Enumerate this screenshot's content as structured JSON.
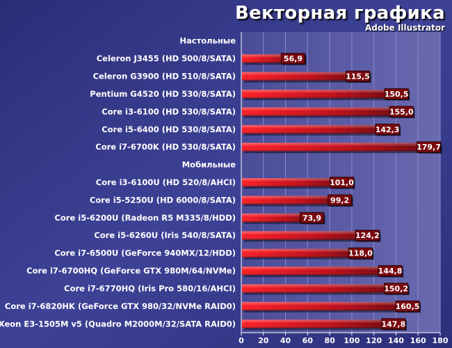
{
  "title": "Векторная графика",
  "subtitle": "Adobe Illustrator",
  "colors": {
    "background": "#3a3e8c",
    "plot_background": "#5a5aa0",
    "bar_main": "#e8101a",
    "bar_dark": "#7a0008",
    "label_box": "#8a0a10",
    "axis_text": "#ffffff"
  },
  "chart_data": {
    "type": "bar",
    "orientation": "horizontal",
    "xlim": [
      0,
      180
    ],
    "xticks": [
      0,
      20,
      40,
      60,
      80,
      100,
      120,
      140,
      160,
      180
    ],
    "grid": true,
    "rows": [
      {
        "label": "Настольные",
        "kind": "group"
      },
      {
        "label": "Celeron J3455 (HD 500/8/SATA)",
        "value": 56.9,
        "display": "56,9"
      },
      {
        "label": "Celeron G3900 (HD 510/8/SATA)",
        "value": 115.5,
        "display": "115,5"
      },
      {
        "label": "Pentium G4520 (HD 530/8/SATA)",
        "value": 150.5,
        "display": "150,5"
      },
      {
        "label": "Core i3-6100 (HD 530/8/SATA)",
        "value": 155.0,
        "display": "155,0"
      },
      {
        "label": "Core i5-6400 (HD 530/8/SATA)",
        "value": 142.3,
        "display": "142,3"
      },
      {
        "label": "Core i7-6700K (HD 530/8/SATA)",
        "value": 179.7,
        "display": "179,7"
      },
      {
        "label": "Мобильные",
        "kind": "group"
      },
      {
        "label": "Core i3-6100U (HD 520/8/AHCI)",
        "value": 101.0,
        "display": "101,0"
      },
      {
        "label": "Core i5-5250U (HD 6000/8/SATA)",
        "value": 99.2,
        "display": "99,2"
      },
      {
        "label": "Core i5-6200U (Radeon R5 M335/8/HDD)",
        "value": 73.9,
        "display": "73,9"
      },
      {
        "label": "Core i5-6260U (Iris 540/8/SATA)",
        "value": 124.2,
        "display": "124,2"
      },
      {
        "label": "Core i7-6500U (GeForce 940MX/12/HDD)",
        "value": 118.0,
        "display": "118,0"
      },
      {
        "label": "Core i7-6700HQ (GeForce GTX 980M/64/NVMe)",
        "value": 144.8,
        "display": "144,8"
      },
      {
        "label": "Core i7-6770HQ (Iris Pro 580/16/AHCI)",
        "value": 150.2,
        "display": "150,2"
      },
      {
        "label": "Core i7-6820HK (GeForce GTX 980/32/NVMe RAID0)",
        "value": 160.5,
        "display": "160,5"
      },
      {
        "label": "Xeon E3-1505M v5 (Quadro M2000M/32/SATA RAID0)",
        "value": 147.8,
        "display": "147,8"
      }
    ]
  }
}
